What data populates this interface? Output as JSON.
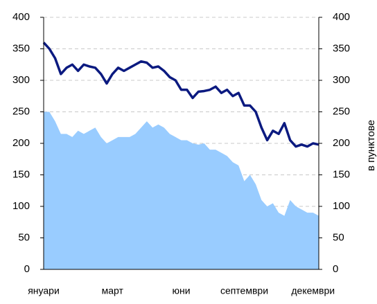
{
  "chart_data": {
    "type": "line-area",
    "y2label": "в пунктове",
    "categories": [
      "януари",
      null,
      null,
      null,
      null,
      null,
      null,
      null,
      null,
      null,
      null,
      null,
      "март",
      null,
      null,
      null,
      null,
      null,
      null,
      null,
      null,
      null,
      null,
      null,
      "юни",
      null,
      null,
      null,
      null,
      null,
      null,
      null,
      null,
      null,
      null,
      "септември",
      null,
      null,
      null,
      null,
      null,
      null,
      null,
      null,
      null,
      null,
      null,
      "декември",
      null
    ],
    "series": [
      {
        "kind": "area",
        "color": "#99ccff",
        "values": [
          250,
          250,
          235,
          215,
          215,
          210,
          220,
          215,
          220,
          225,
          210,
          200,
          205,
          210,
          210,
          210,
          215,
          225,
          235,
          225,
          230,
          225,
          215,
          210,
          205,
          205,
          200,
          198,
          200,
          190,
          190,
          185,
          180,
          170,
          165,
          140,
          150,
          135,
          110,
          100,
          105,
          90,
          85,
          110,
          100,
          95,
          90,
          90,
          85
        ]
      },
      {
        "kind": "line",
        "color": "#0b1a80",
        "values": [
          360,
          350,
          335,
          310,
          320,
          325,
          315,
          325,
          322,
          320,
          310,
          295,
          310,
          320,
          315,
          320,
          325,
          330,
          328,
          320,
          322,
          315,
          305,
          300,
          285,
          285,
          272,
          282,
          283,
          285,
          290,
          280,
          285,
          275,
          280,
          260,
          260,
          250,
          225,
          205,
          220,
          215,
          232,
          205,
          195,
          198,
          195,
          200,
          198
        ]
      }
    ],
    "ylim": [
      0,
      400
    ],
    "yticks": [
      0,
      50,
      100,
      150,
      200,
      250,
      300,
      350,
      400
    ],
    "y2lim": [
      0,
      400
    ],
    "y2ticks": [
      0,
      50,
      100,
      150,
      200,
      250,
      300,
      350,
      400
    ],
    "grid": true
  }
}
